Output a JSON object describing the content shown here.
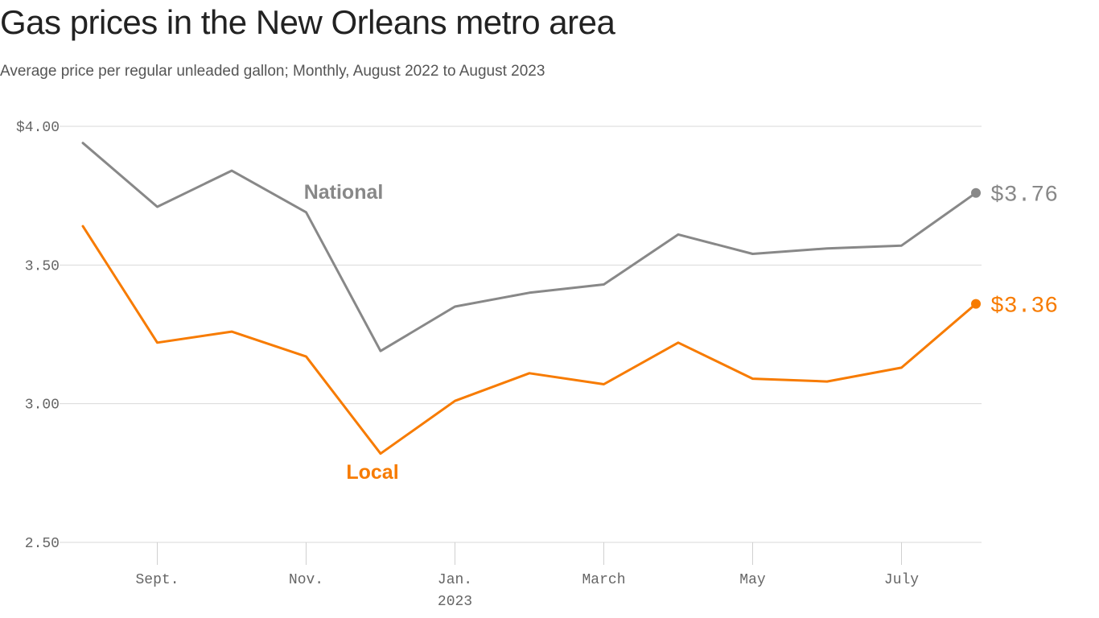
{
  "chart_data": {
    "type": "line",
    "title": "Gas prices in the New Orleans metro area",
    "subtitle": "Average price per regular unleaded gallon; Monthly, August 2022 to August 2023",
    "x": [
      "2022-08",
      "2022-09",
      "2022-10",
      "2022-11",
      "2022-12",
      "2023-01",
      "2023-02",
      "2023-03",
      "2023-04",
      "2023-05",
      "2023-06",
      "2023-07",
      "2023-08"
    ],
    "series": [
      {
        "name": "National",
        "color": "#888888",
        "values": [
          3.94,
          3.71,
          3.84,
          3.69,
          3.19,
          3.35,
          3.4,
          3.43,
          3.61,
          3.54,
          3.56,
          3.57,
          3.76
        ],
        "end_label": "$3.76"
      },
      {
        "name": "Local",
        "color": "#f77b00",
        "values": [
          3.64,
          3.22,
          3.26,
          3.17,
          2.82,
          3.01,
          3.11,
          3.07,
          3.22,
          3.09,
          3.08,
          3.13,
          3.36
        ],
        "end_label": "$3.36"
      }
    ],
    "ylim": [
      2.5,
      4.0
    ],
    "yticks": [
      {
        "value": 4.0,
        "label": "$4.00"
      },
      {
        "value": 3.5,
        "label": "3.50"
      },
      {
        "value": 3.0,
        "label": "3.00"
      },
      {
        "value": 2.5,
        "label": "2.50"
      }
    ],
    "xticks": [
      {
        "index": 1,
        "label": "Sept."
      },
      {
        "index": 3,
        "label": "Nov."
      },
      {
        "index": 5,
        "label": "Jan.",
        "sublabel": "2023"
      },
      {
        "index": 7,
        "label": "March"
      },
      {
        "index": 9,
        "label": "May"
      },
      {
        "index": 11,
        "label": "July"
      }
    ],
    "grid": true,
    "xlabel": "",
    "ylabel": ""
  }
}
